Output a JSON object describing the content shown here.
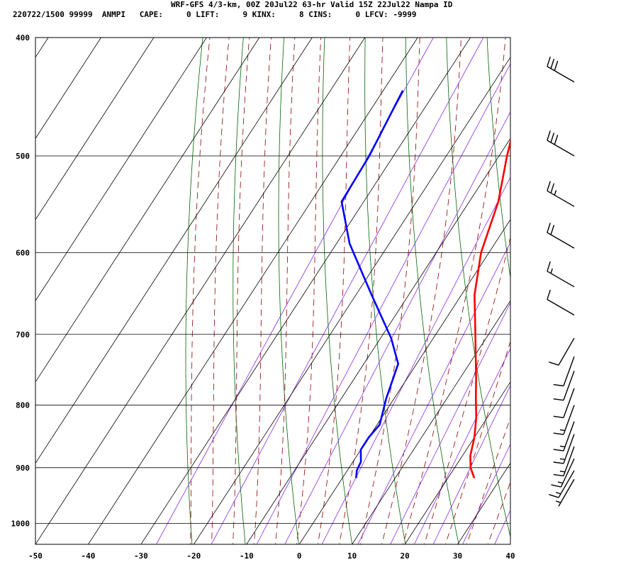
{
  "header": {
    "title_line": "WRF-GFS 4/3-km, 00Z 20Jul22 63-hr Valid 15Z 22Jul22 Nampa ID",
    "stats_line": "220722/1500 99999  ANMPI   CAPE:     0 LIFT:     9 KINX:     8 CINS:     0 LFCV: -9999"
  },
  "colors": {
    "temperature": "#ff0000",
    "dewpoint": "#0000ff",
    "dry_adiabat": "#006400",
    "moist_adiabat": "#8b0000",
    "mixing_ratio": "#8a2be2",
    "grid": "#000000"
  },
  "chart_data": {
    "type": "line",
    "subtype": "skew-t log-p sounding",
    "xlabel": "",
    "ylabel": "",
    "xlim": [
      -50,
      40
    ],
    "ylim": [
      1040,
      400
    ],
    "y_scale": "log",
    "x_ticks": [
      -50,
      -40,
      -30,
      -20,
      -10,
      0,
      10,
      20,
      30,
      40
    ],
    "y_ticks": [
      400,
      500,
      600,
      700,
      800,
      900,
      1000
    ],
    "grid": true,
    "series": [
      {
        "key": "temperature",
        "points": [
          [
            442,
            -15.5
          ],
          [
            470,
            -11
          ],
          [
            500,
            -8.5
          ],
          [
            545,
            -4.5
          ],
          [
            600,
            -1.5
          ],
          [
            650,
            2.5
          ],
          [
            700,
            7.5
          ],
          [
            760,
            13
          ],
          [
            790,
            15.5
          ],
          [
            820,
            18
          ],
          [
            850,
            20
          ],
          [
            880,
            21.5
          ],
          [
            900,
            23
          ],
          [
            918,
            25
          ]
        ]
      },
      {
        "key": "dewpoint",
        "points": [
          [
            442,
            -36.3
          ],
          [
            500,
            -34.6
          ],
          [
            545,
            -34.2
          ],
          [
            590,
            -27.5
          ],
          [
            650,
            -17
          ],
          [
            705,
            -8
          ],
          [
            740,
            -3.5
          ],
          [
            790,
            -1.5
          ],
          [
            830,
            0.5
          ],
          [
            850,
            0
          ],
          [
            870,
            0
          ],
          [
            890,
            1.5
          ],
          [
            905,
            1.8
          ],
          [
            918,
            2.6
          ]
        ]
      }
    ],
    "wind_barbs": [
      {
        "pressure": 435,
        "speed_kt": 30,
        "direction_deg": 300
      },
      {
        "pressure": 500,
        "speed_kt": 30,
        "direction_deg": 300
      },
      {
        "pressure": 550,
        "speed_kt": 25,
        "direction_deg": 300
      },
      {
        "pressure": 595,
        "speed_kt": 20,
        "direction_deg": 300
      },
      {
        "pressure": 640,
        "speed_kt": 15,
        "direction_deg": 300
      },
      {
        "pressure": 675,
        "speed_kt": 10,
        "direction_deg": 300
      },
      {
        "pressure": 705,
        "speed_kt": 10,
        "direction_deg": 210
      },
      {
        "pressure": 730,
        "speed_kt": 10,
        "direction_deg": 200
      },
      {
        "pressure": 750,
        "speed_kt": 10,
        "direction_deg": 200
      },
      {
        "pressure": 775,
        "speed_kt": 10,
        "direction_deg": 200
      },
      {
        "pressure": 800,
        "speed_kt": 15,
        "direction_deg": 200
      },
      {
        "pressure": 825,
        "speed_kt": 15,
        "direction_deg": 200
      },
      {
        "pressure": 845,
        "speed_kt": 15,
        "direction_deg": 200
      },
      {
        "pressure": 865,
        "speed_kt": 15,
        "direction_deg": 200
      },
      {
        "pressure": 885,
        "speed_kt": 15,
        "direction_deg": 205
      },
      {
        "pressure": 905,
        "speed_kt": 15,
        "direction_deg": 210
      },
      {
        "pressure": 920,
        "speed_kt": 5,
        "direction_deg": 210
      }
    ]
  }
}
